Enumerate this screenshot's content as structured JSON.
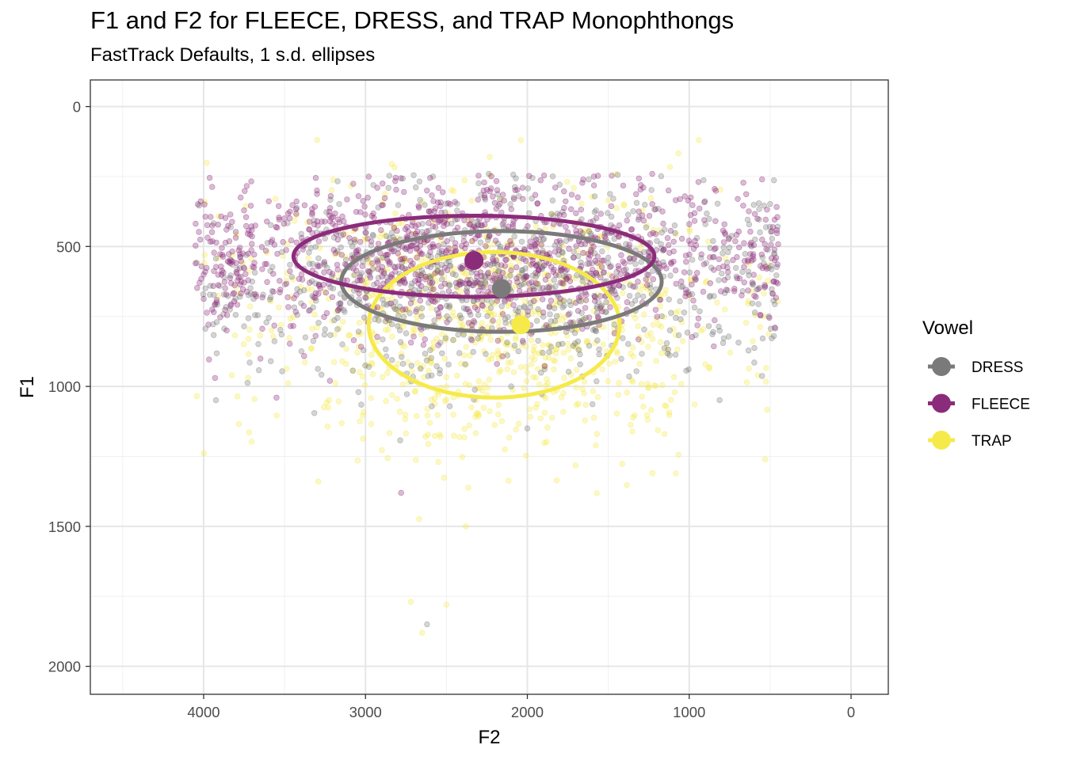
{
  "chart_data": {
    "type": "scatter",
    "title": "F1 and F2 for FLEECE, DRESS, and TRAP Monophthongs",
    "subtitle": "FastTrack Defaults, 1 s.d. ellipses",
    "xlabel": "F2",
    "ylabel": "F1",
    "x_reversed": true,
    "y_reversed": true,
    "xlim": [
      4700,
      -230
    ],
    "ylim": [
      -95,
      2100
    ],
    "x_ticks": [
      4000,
      3000,
      2000,
      1000,
      0
    ],
    "x_tick_labels": [
      "4000",
      "3000",
      "2000",
      "1000",
      "0"
    ],
    "y_ticks": [
      0,
      500,
      1000,
      1500,
      2000
    ],
    "y_tick_labels": [
      "0",
      "500",
      "1000",
      "1500",
      "2000"
    ],
    "grid": true,
    "legend": {
      "title": "Vowel",
      "position": "right",
      "entries": [
        "DRESS",
        "FLEECE",
        "TRAP"
      ]
    },
    "series": [
      {
        "name": "DRESS",
        "color": "#7a7a7a",
        "mean": {
          "F2": 2160,
          "F1": 650
        },
        "ellipse_1sd": {
          "center_F2": 2160,
          "center_F1": 625,
          "sd_F2": 990,
          "sd_F1": 180
        },
        "points_sample": [
          [
            2850,
            470
          ],
          [
            2500,
            560
          ],
          [
            2200,
            620
          ],
          [
            1800,
            700
          ],
          [
            1500,
            540
          ],
          [
            1200,
            480
          ],
          [
            2600,
            870
          ],
          [
            2100,
            1000
          ],
          [
            2000,
            1150
          ],
          [
            2620,
            1850
          ],
          [
            900,
            420
          ],
          [
            3200,
            650
          ]
        ]
      },
      {
        "name": "FLEECE",
        "color": "#8b2c7a",
        "mean": {
          "F2": 2330,
          "F1": 550
        },
        "ellipse_1sd": {
          "center_F2": 2330,
          "center_F1": 535,
          "sd_F2": 1115,
          "sd_F1": 145
        },
        "points_sample": [
          [
            4050,
            560
          ],
          [
            3500,
            400
          ],
          [
            3300,
            300
          ],
          [
            3000,
            450
          ],
          [
            2600,
            520
          ],
          [
            2200,
            600
          ],
          [
            1800,
            480
          ],
          [
            1400,
            560
          ],
          [
            1000,
            420
          ],
          [
            700,
            330
          ],
          [
            550,
            260
          ],
          [
            3550,
            1040
          ],
          [
            3220,
            980
          ],
          [
            2780,
            1380
          ]
        ]
      },
      {
        "name": "TRAP",
        "color": "#f6ea4b",
        "mean": {
          "F2": 2040,
          "F1": 780
        },
        "ellipse_1sd": {
          "center_F2": 2205,
          "center_F1": 780,
          "sd_F2": 775,
          "sd_F1": 260
        },
        "points_sample": [
          [
            2800,
            920
          ],
          [
            2500,
            1000
          ],
          [
            2300,
            1100
          ],
          [
            2000,
            950
          ],
          [
            1700,
            860
          ],
          [
            1500,
            700
          ],
          [
            1200,
            760
          ],
          [
            2040,
            120
          ],
          [
            940,
            120
          ],
          [
            2720,
            1770
          ],
          [
            2500,
            1780
          ],
          [
            2650,
            1880
          ],
          [
            2380,
            1500
          ]
        ]
      }
    ]
  }
}
